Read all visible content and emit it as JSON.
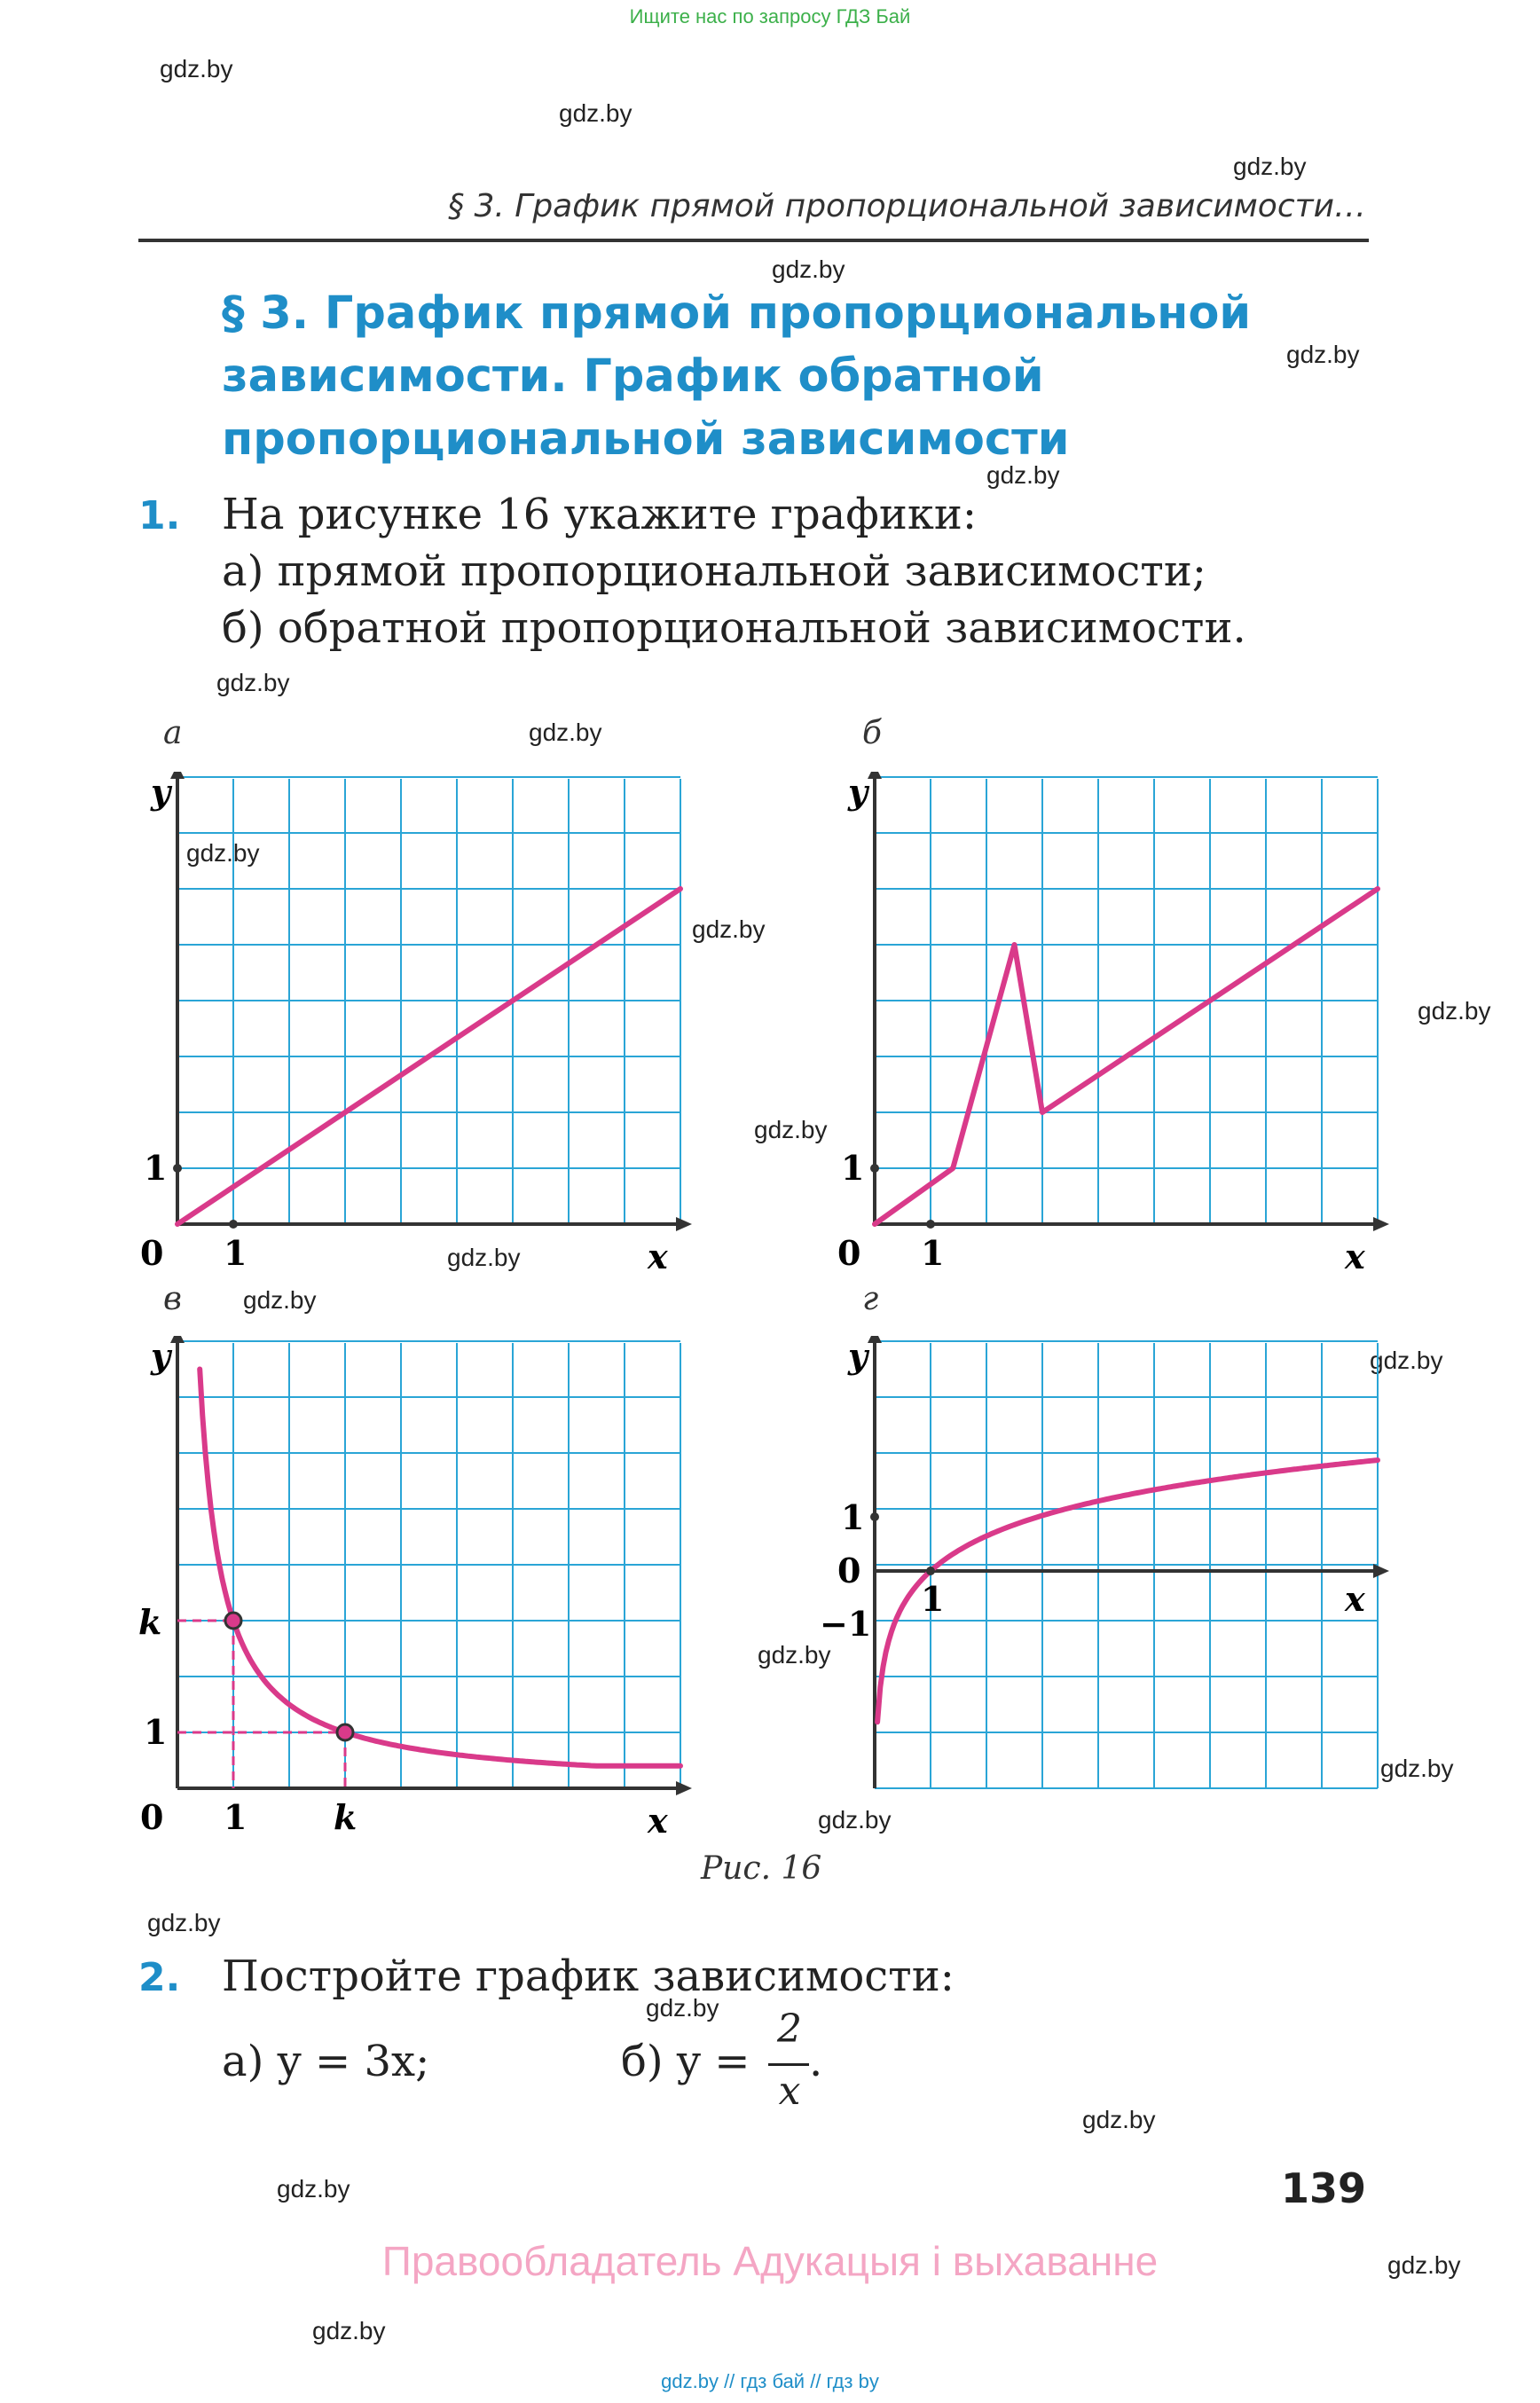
{
  "top_banner": "Ищите нас по запросу ГДЗ Бай",
  "running_head": "§ 3. График прямой пропорциональной зависимости…",
  "section": {
    "title_lines": [
      "§ 3. График прямой пропорциональной",
      "зависимости. График обратной",
      "пропорциональной зависимости"
    ]
  },
  "task1": {
    "number": "1.",
    "lines": [
      "На рисунке 16 укажите графики:",
      "а) прямой пропорциональной зависимости;",
      "б) обратной пропорциональной зависимости."
    ]
  },
  "figures": {
    "caption": "Рис. 16",
    "a": {
      "letter": "а",
      "y_label": "y",
      "x_label": "x",
      "origin": "0",
      "x_tick": "1",
      "y_tick": "1"
    },
    "b": {
      "letter": "б",
      "y_label": "y",
      "x_label": "x",
      "origin": "0",
      "x_tick": "1",
      "y_tick": "1"
    },
    "v": {
      "letter": "в",
      "y_label": "y",
      "x_label": "x",
      "origin": "0",
      "x_tick": "1",
      "x_tick_k": "k",
      "y_tick": "1",
      "y_tick_k": "k"
    },
    "g": {
      "letter": "г",
      "y_label": "y",
      "x_label": "x",
      "origin": "0",
      "x_tick": "1",
      "y_tick": "1",
      "y_tick_neg": "−1"
    }
  },
  "chart_data": [
    {
      "type": "line",
      "title": "а",
      "xlabel": "x",
      "ylabel": "y",
      "x": [
        0,
        9
      ],
      "y": [
        0,
        6
      ],
      "xlim": [
        0,
        9
      ],
      "ylim": [
        0,
        8
      ],
      "grid": true
    },
    {
      "type": "line",
      "title": "б",
      "xlabel": "x",
      "ylabel": "y",
      "x": [
        0,
        1.4,
        2.5,
        3,
        9
      ],
      "y": [
        0,
        1,
        5,
        2,
        6
      ],
      "xlim": [
        0,
        9
      ],
      "ylim": [
        0,
        8
      ],
      "grid": true
    },
    {
      "type": "line",
      "title": "в",
      "xlabel": "x",
      "ylabel": "y",
      "formula": "y = k/x",
      "k": 3,
      "points": [
        [
          1,
          3
        ],
        [
          3,
          1
        ]
      ],
      "xlim": [
        0,
        9
      ],
      "ylim": [
        0,
        8
      ],
      "grid": true
    },
    {
      "type": "line",
      "title": "г",
      "xlabel": "x",
      "ylabel": "y",
      "formula": "y = log(x)",
      "xlim": [
        0,
        9
      ],
      "ylim": [
        -4,
        4
      ],
      "grid": true
    }
  ],
  "task2": {
    "number": "2.",
    "line": "Постройте график зависимости:",
    "a": "а) y = 3x;",
    "b_prefix": "б) y =",
    "b_num": "2",
    "b_den": "x",
    "b_suffix": "."
  },
  "page_number": "139",
  "copyright": "Правообладатель Адукацыя і выхаванне",
  "footer": "gdz.by  //  гдз бай  //  гдз by",
  "watermark": "gdz.by",
  "colors": {
    "accent": "#1f8ec8",
    "grid": "#2aa5d6",
    "curve": "#d93a8a",
    "banner": "#3cb04a",
    "copyright": "#f4a6c4"
  }
}
